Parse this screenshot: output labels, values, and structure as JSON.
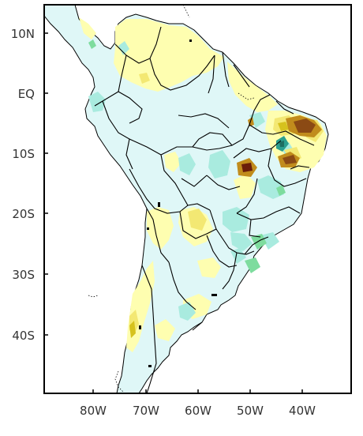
{
  "map": {
    "lat_labels": [
      "10N",
      "EQ",
      "10S",
      "20S",
      "30S",
      "40S"
    ],
    "lon_labels": [
      "80W",
      "70W",
      "60W",
      "50W",
      "40W"
    ],
    "colors": {
      "ocean": "#ffffff",
      "light_cyan": "#dff7f7",
      "cyan": "#a9ebdf",
      "green": "#7edc9e",
      "teal": "#2b9f8f",
      "dark_teal": "#1e6e62",
      "light_yellow": "#fefeb0",
      "yellow": "#f3e873",
      "mustard": "#d6c21d",
      "orange_brown": "#c18c1c",
      "brown": "#8b4a14",
      "dark_red": "#6a1d0a",
      "border": "#000000",
      "frame": "#000000"
    }
  }
}
